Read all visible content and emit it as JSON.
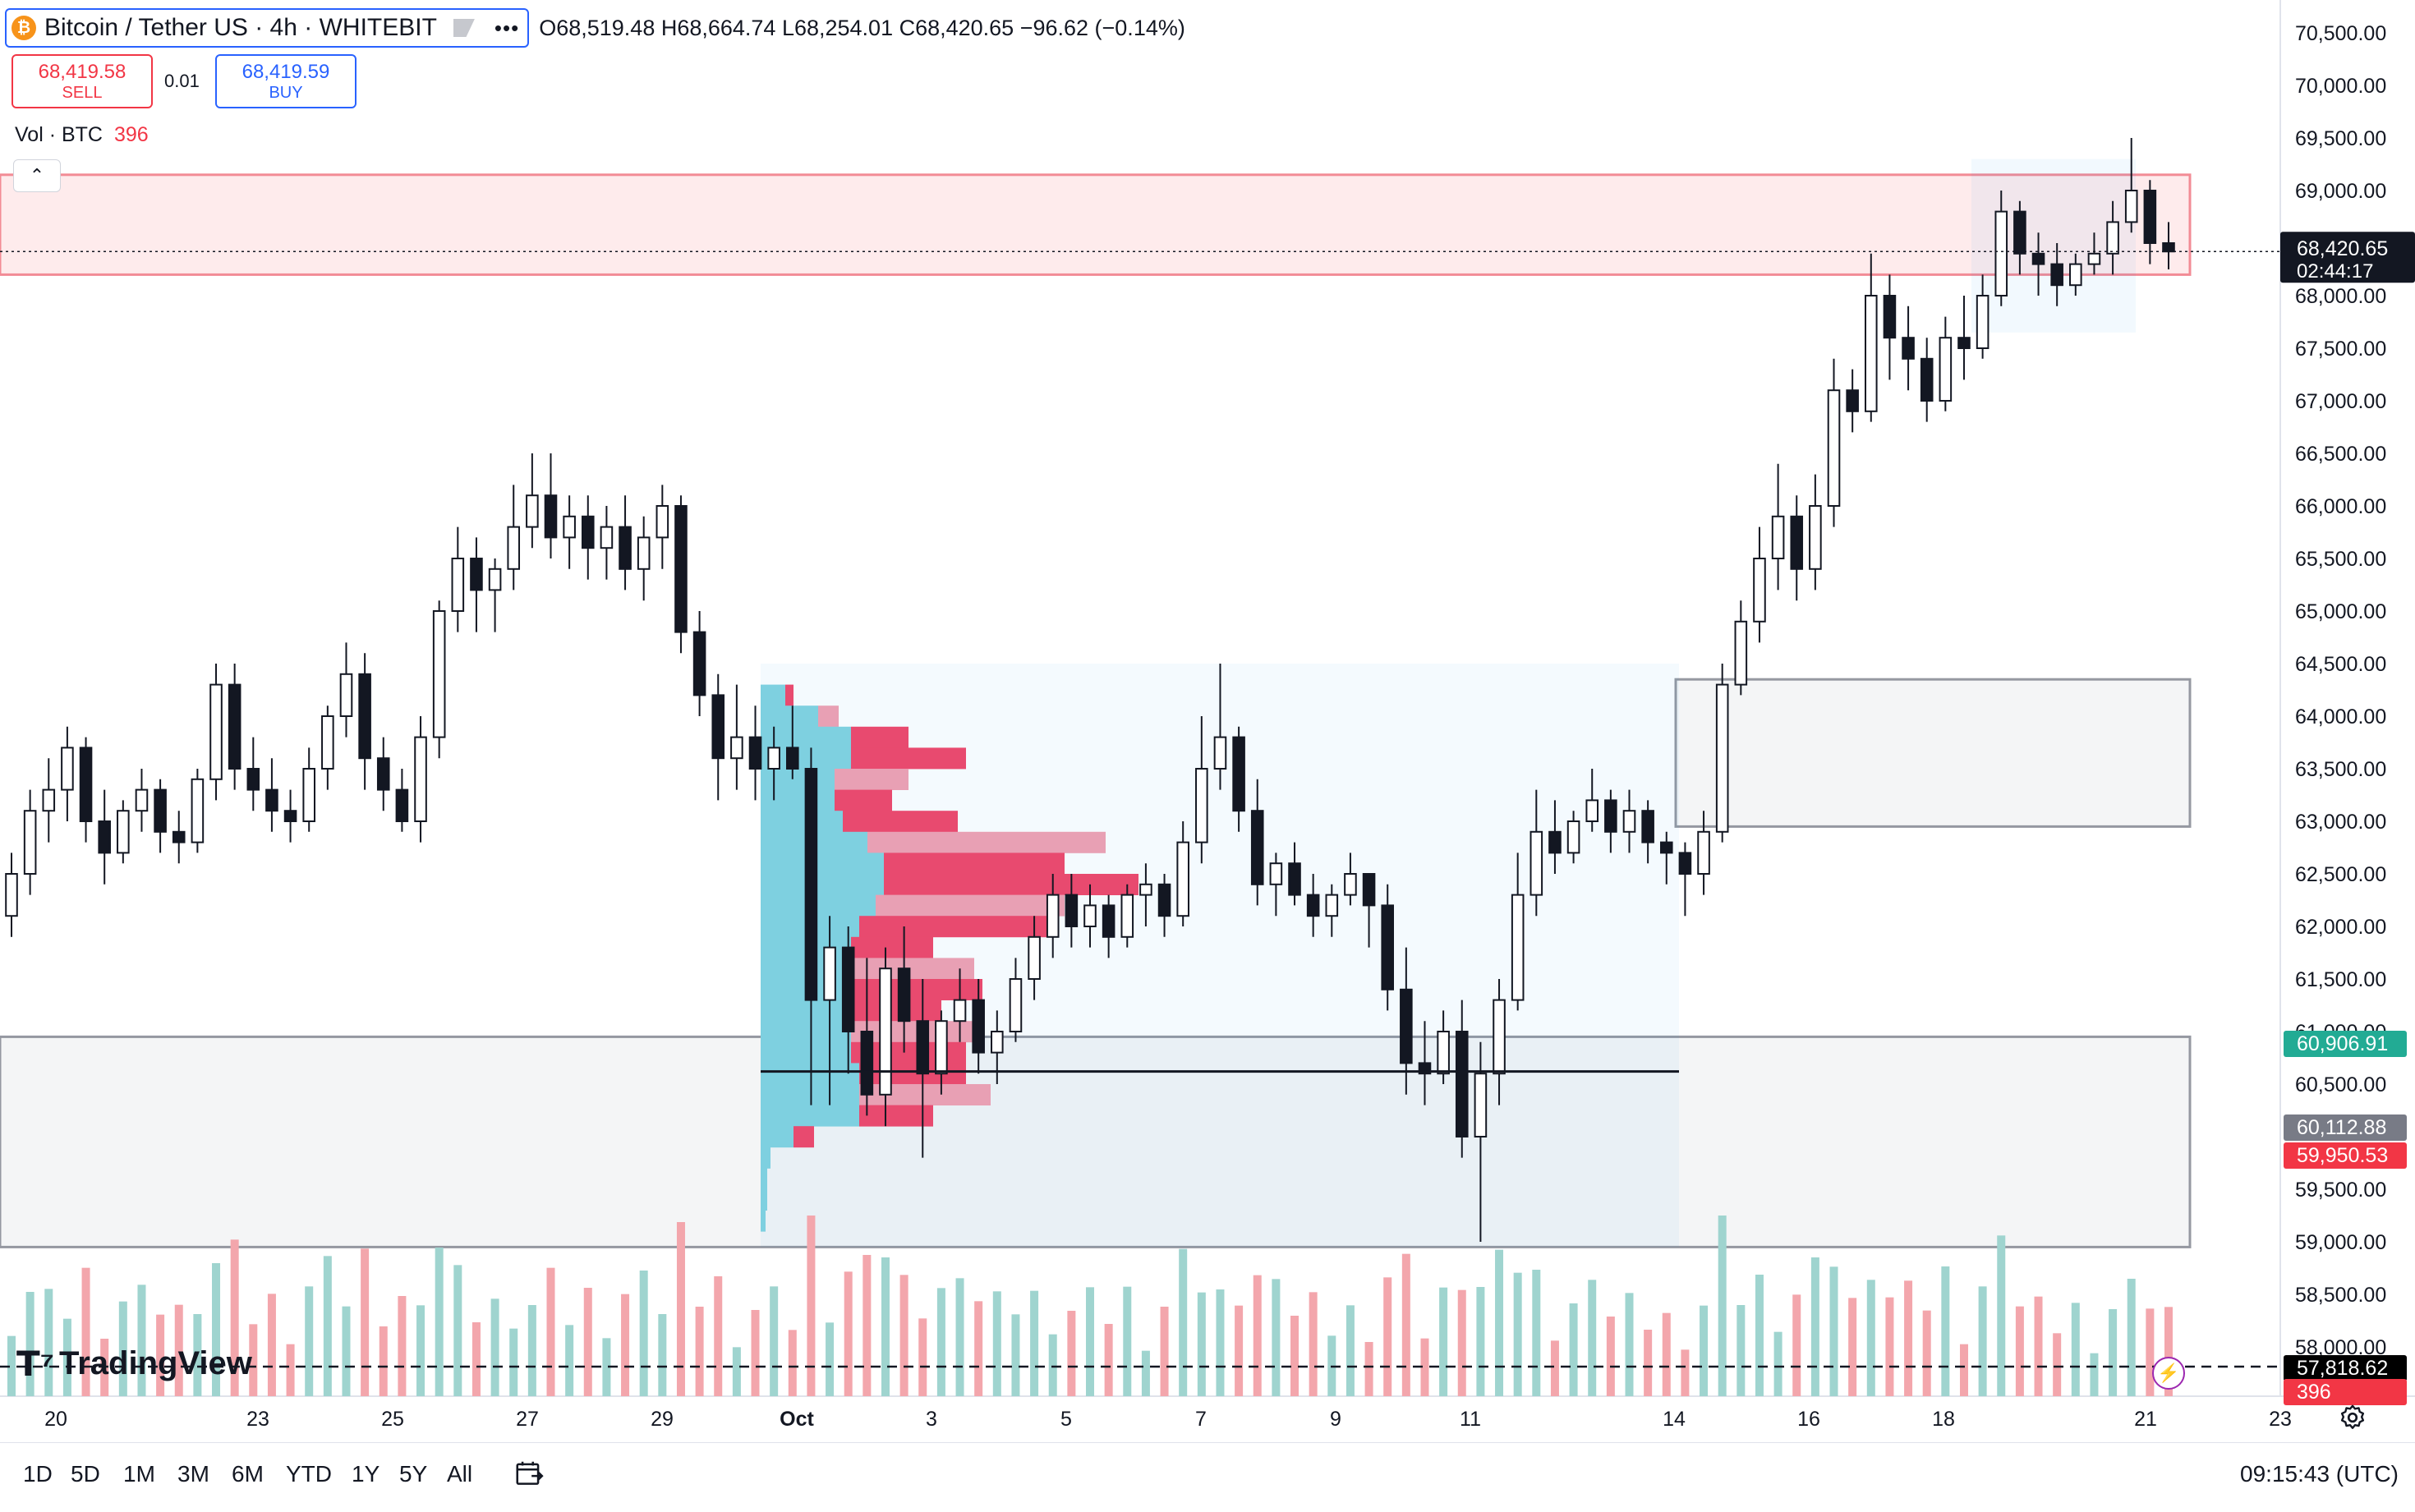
{
  "header": {
    "symbol_title": "Bitcoin / Tether US · 4h · WHITEBIT",
    "more_label": "•••",
    "ohlc": "O68,519.48 H68,664.74 L68,254.01 C68,420.65 −96.62 (−0.14%)"
  },
  "trade": {
    "sell_price": "68,419.58",
    "sell_label": "SELL",
    "spread": "0.01",
    "buy_price": "68,419.59",
    "buy_label": "BUY"
  },
  "volume_indicator": {
    "label": "Vol · BTC",
    "value": "396"
  },
  "logo_text": "TradingView",
  "price_axis": {
    "ticks": [
      "70,500.00",
      "70,000.00",
      "69,500.00",
      "69,000.00",
      "68,000.00",
      "67,500.00",
      "67,000.00",
      "66,500.00",
      "66,000.00",
      "65,500.00",
      "65,000.00",
      "64,500.00",
      "64,000.00",
      "63,500.00",
      "63,000.00",
      "62,500.00",
      "62,000.00",
      "61,500.00",
      "61,000.00",
      "60,500.00",
      "59,500.00",
      "59,000.00",
      "58,500.00",
      "58,000.00"
    ],
    "current_price": "68,420.65",
    "countdown": "02:44:17",
    "labels": [
      {
        "text": "60,906.91",
        "color": "#22ab94"
      },
      {
        "text": "60,112.88",
        "color": "#787b86"
      },
      {
        "text": "59,950.53",
        "color": "#f23645"
      },
      {
        "text": "57,818.62",
        "color": "#000000"
      },
      {
        "text": "396",
        "color": "#f23645"
      }
    ]
  },
  "time_axis": {
    "labels": [
      "20",
      "23",
      "25",
      "27",
      "29",
      "Oct",
      "3",
      "5",
      "7",
      "9",
      "11",
      "14",
      "16",
      "18",
      "21",
      "23"
    ]
  },
  "bottom_bar": {
    "ranges": [
      "1D",
      "5D",
      "1M",
      "3M",
      "6M",
      "YTD",
      "1Y",
      "5Y",
      "All"
    ],
    "clock": "09:15:43 (UTC)"
  },
  "colors": {
    "up": "#22ab94",
    "down": "#f23645",
    "volume_up": "#9fd4cf",
    "volume_down": "#f3a6ac",
    "vp_up": "#7ed0e0",
    "vp_down": "#e84a6f"
  },
  "chart_data": {
    "type": "candlestick",
    "interval": "4h",
    "price_range": [
      57500,
      70800
    ],
    "candles": [
      [
        62100,
        62700,
        61900,
        62500
      ],
      [
        62500,
        63300,
        62300,
        63100
      ],
      [
        63100,
        63600,
        62800,
        63300
      ],
      [
        63300,
        63900,
        63000,
        63700
      ],
      [
        63700,
        63800,
        62800,
        63000
      ],
      [
        63000,
        63300,
        62400,
        62700
      ],
      [
        62700,
        63200,
        62600,
        63100
      ],
      [
        63100,
        63500,
        62900,
        63300
      ],
      [
        63300,
        63400,
        62700,
        62900
      ],
      [
        62900,
        63100,
        62600,
        62800
      ],
      [
        62800,
        63500,
        62700,
        63400
      ],
      [
        63400,
        64500,
        63200,
        64300
      ],
      [
        64300,
        64500,
        63300,
        63500
      ],
      [
        63500,
        63800,
        63100,
        63300
      ],
      [
        63300,
        63600,
        62900,
        63100
      ],
      [
        63100,
        63300,
        62800,
        63000
      ],
      [
        63000,
        63700,
        62900,
        63500
      ],
      [
        63500,
        64100,
        63300,
        64000
      ],
      [
        64000,
        64700,
        63800,
        64400
      ],
      [
        64400,
        64600,
        63300,
        63600
      ],
      [
        63600,
        63800,
        63100,
        63300
      ],
      [
        63300,
        63500,
        62900,
        63000
      ],
      [
        63000,
        64000,
        62800,
        63800
      ],
      [
        63800,
        65100,
        63600,
        65000
      ],
      [
        65000,
        65800,
        64800,
        65500
      ],
      [
        65500,
        65700,
        64800,
        65200
      ],
      [
        65200,
        65500,
        64800,
        65400
      ],
      [
        65400,
        66200,
        65200,
        65800
      ],
      [
        65800,
        66500,
        65600,
        66100
      ],
      [
        66100,
        66500,
        65500,
        65700
      ],
      [
        65700,
        66100,
        65400,
        65900
      ],
      [
        65900,
        66100,
        65300,
        65600
      ],
      [
        65600,
        66000,
        65300,
        65800
      ],
      [
        65800,
        66100,
        65200,
        65400
      ],
      [
        65400,
        65900,
        65100,
        65700
      ],
      [
        65700,
        66200,
        65400,
        66000
      ],
      [
        66000,
        66100,
        64600,
        64800
      ],
      [
        64800,
        65000,
        64000,
        64200
      ],
      [
        64200,
        64400,
        63200,
        63600
      ],
      [
        63600,
        64300,
        63300,
        63800
      ],
      [
        63800,
        64100,
        63200,
        63500
      ],
      [
        63500,
        63900,
        63200,
        63700
      ],
      [
        63700,
        64100,
        63400,
        63500
      ],
      [
        63500,
        63700,
        60300,
        61300
      ],
      [
        61300,
        62100,
        60300,
        61800
      ],
      [
        61800,
        62000,
        60600,
        61000
      ],
      [
        61000,
        61700,
        60200,
        60400
      ],
      [
        60400,
        61800,
        60100,
        61600
      ],
      [
        61600,
        62000,
        60800,
        61100
      ],
      [
        61100,
        61500,
        59800,
        60600
      ],
      [
        60600,
        61200,
        60400,
        61100
      ],
      [
        61100,
        61600,
        60900,
        61300
      ],
      [
        61300,
        61500,
        60600,
        60800
      ],
      [
        60800,
        61200,
        60500,
        61000
      ],
      [
        61000,
        61700,
        60900,
        61500
      ],
      [
        61500,
        62100,
        61300,
        61900
      ],
      [
        61900,
        62500,
        61700,
        62300
      ],
      [
        62300,
        62500,
        61800,
        62000
      ],
      [
        62000,
        62400,
        61800,
        62200
      ],
      [
        62200,
        62300,
        61700,
        61900
      ],
      [
        61900,
        62400,
        61800,
        62300
      ],
      [
        62300,
        62600,
        62000,
        62400
      ],
      [
        62400,
        62500,
        61900,
        62100
      ],
      [
        62100,
        63000,
        62000,
        62800
      ],
      [
        62800,
        64000,
        62600,
        63500
      ],
      [
        63500,
        64500,
        63300,
        63800
      ],
      [
        63800,
        63900,
        62900,
        63100
      ],
      [
        63100,
        63400,
        62200,
        62400
      ],
      [
        62400,
        62700,
        62100,
        62600
      ],
      [
        62600,
        62800,
        62200,
        62300
      ],
      [
        62300,
        62500,
        61900,
        62100
      ],
      [
        62100,
        62400,
        61900,
        62300
      ],
      [
        62300,
        62700,
        62200,
        62500
      ],
      [
        62500,
        62500,
        61800,
        62200
      ],
      [
        62200,
        62400,
        61200,
        61400
      ],
      [
        61400,
        61800,
        60400,
        60700
      ],
      [
        60700,
        61100,
        60300,
        60600
      ],
      [
        60600,
        61200,
        60500,
        61000
      ],
      [
        61000,
        61300,
        59800,
        60000
      ],
      [
        60000,
        60900,
        59000,
        60600
      ],
      [
        60600,
        61500,
        60300,
        61300
      ],
      [
        61300,
        62700,
        61200,
        62300
      ],
      [
        62300,
        63300,
        62100,
        62900
      ],
      [
        62900,
        63200,
        62500,
        62700
      ],
      [
        62700,
        63100,
        62600,
        63000
      ],
      [
        63000,
        63500,
        62900,
        63200
      ],
      [
        63200,
        63300,
        62700,
        62900
      ],
      [
        62900,
        63300,
        62700,
        63100
      ],
      [
        63100,
        63200,
        62600,
        62800
      ],
      [
        62800,
        62900,
        62400,
        62700
      ],
      [
        62700,
        62800,
        62100,
        62500
      ],
      [
        62500,
        63100,
        62300,
        62900
      ],
      [
        62900,
        64500,
        62800,
        64300
      ],
      [
        64300,
        65100,
        64200,
        64900
      ],
      [
        64900,
        65800,
        64700,
        65500
      ],
      [
        65500,
        66400,
        65200,
        65900
      ],
      [
        65900,
        66100,
        65100,
        65400
      ],
      [
        65400,
        66300,
        65200,
        66000
      ],
      [
        66000,
        67400,
        65800,
        67100
      ],
      [
        67100,
        67300,
        66700,
        66900
      ],
      [
        66900,
        68400,
        66800,
        68000
      ],
      [
        68000,
        68200,
        67200,
        67600
      ],
      [
        67600,
        67900,
        67100,
        67400
      ],
      [
        67400,
        67600,
        66800,
        67000
      ],
      [
        67000,
        67800,
        66900,
        67600
      ],
      [
        67600,
        68000,
        67200,
        67500
      ],
      [
        67500,
        68200,
        67400,
        68000
      ],
      [
        68000,
        69000,
        67900,
        68800
      ],
      [
        68800,
        68900,
        68200,
        68400
      ],
      [
        68400,
        68600,
        68000,
        68300
      ],
      [
        68300,
        68500,
        67900,
        68100
      ],
      [
        68100,
        68400,
        68000,
        68300
      ],
      [
        68300,
        68600,
        68200,
        68400
      ],
      [
        68400,
        68900,
        68200,
        68700
      ],
      [
        68700,
        69500,
        68600,
        69000
      ],
      [
        69000,
        69100,
        68300,
        68500
      ],
      [
        68500,
        68700,
        68250,
        68420
      ]
    ],
    "supply_zone": [
      68200,
      69150
    ],
    "demand_zones": [
      [
        62950,
        64350
      ],
      [
        58950,
        60950
      ]
    ],
    "horizontal_lines": [
      60620
    ]
  }
}
